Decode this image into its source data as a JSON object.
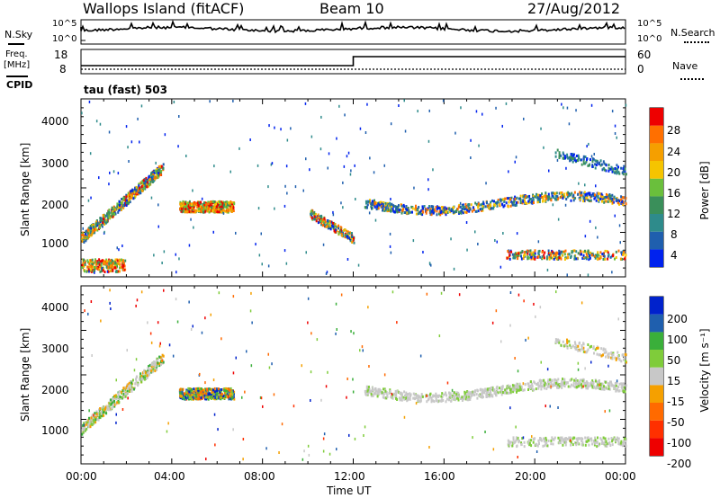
{
  "header": {
    "station": "Wallops Island (fitACF)",
    "beam": "Beam 10",
    "date": "27/Aug/2012"
  },
  "sky_panel": {
    "left_label": "N.Sky",
    "top_tick": "10^5",
    "bottom_tick": "10^0",
    "right_label": "N.Search",
    "right_top_tick": "10^5",
    "right_bottom_tick": "10^0"
  },
  "freq_panel": {
    "left_label_top": "Freq.",
    "left_label_unit": "[MHz]",
    "cpid_label": "CPID",
    "left_top_tick": "18",
    "left_bottom_tick": "8",
    "right_label": "Nave",
    "right_top_tick": "60",
    "right_bottom_tick": "0",
    "freq_step_time": "12:00"
  },
  "cpid_text": "tau (fast) 503",
  "colors": {
    "power_scale": [
      "#0022ee",
      "#1f5fae",
      "#2e8b8b",
      "#3a8f5a",
      "#6abf3c",
      "#f5c400",
      "#f59f00",
      "#ff6f00",
      "#ee0000"
    ],
    "velocity_scale": [
      "#0022cc",
      "#1f5fae",
      "#3aaf3a",
      "#7fcc3a",
      "#c8c8c8",
      "#f5a000",
      "#ff6a00",
      "#ff3000",
      "#ee0000"
    ]
  },
  "chart_data": [
    {
      "type": "heatmap",
      "title": "Power",
      "ylabel": "Slant Range [km]",
      "xlabel": "",
      "ylim": [
        180,
        4500
      ],
      "y_ticks": [
        "1000",
        "2000",
        "3000",
        "4000"
      ],
      "x_ticks": [
        "00:00",
        "04:00",
        "08:00",
        "12:00",
        "16:00",
        "20:00",
        "00:00"
      ],
      "colorbar": {
        "label": "Power [dB]",
        "ticks": [
          "4",
          "8",
          "12",
          "16",
          "20",
          "24",
          "28"
        ]
      }
    },
    {
      "type": "heatmap",
      "title": "Velocity",
      "ylabel": "Slant Range [km]",
      "xlabel": "Time UT",
      "ylim": [
        180,
        4500
      ],
      "y_ticks": [
        "1000",
        "2000",
        "3000",
        "4000"
      ],
      "x_ticks": [
        "00:00",
        "04:00",
        "08:00",
        "12:00",
        "16:00",
        "20:00",
        "00:00"
      ],
      "colorbar": {
        "label": "Velocity [m s⁻¹]",
        "ticks": [
          "200",
          "100",
          "50",
          "15",
          "-15",
          "-50",
          "-100",
          "-200"
        ]
      }
    }
  ]
}
